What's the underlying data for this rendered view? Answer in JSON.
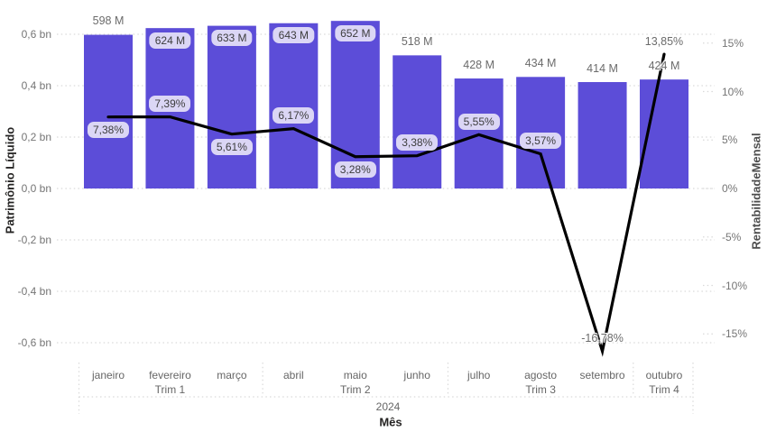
{
  "chart_data": {
    "type": "combo-bar-line",
    "x_axis_title": "Mês",
    "year_label": "2024",
    "categories": [
      "janeiro",
      "fevereiro",
      "março",
      "abril",
      "maio",
      "junho",
      "julho",
      "agosto",
      "setembro",
      "outubro"
    ],
    "quarters": [
      {
        "label": "Trim 1",
        "center_month_index": 1
      },
      {
        "label": "Trim 2",
        "center_month_index": 4
      },
      {
        "label": "Trim 3",
        "center_month_index": 7
      },
      {
        "label": "Trim 4",
        "center_month_index": 9
      }
    ],
    "separators_after_month_index": [
      2,
      5,
      8
    ],
    "bar_series": {
      "name": "Patrimônio Líquido",
      "unit": "M",
      "values_m": [
        598,
        624,
        633,
        643,
        652,
        518,
        428,
        434,
        414,
        424
      ],
      "labels": [
        "598 M",
        "624 M",
        "633 M",
        "643 M",
        "652 M",
        "518 M",
        "428 M",
        "434 M",
        "414 M",
        "424 M"
      ],
      "label_placement": [
        "outside",
        "inside",
        "inside",
        "inside",
        "inside",
        "outside",
        "outside",
        "outside",
        "outside",
        "outside"
      ]
    },
    "line_series": {
      "name": "RentabilidadeMensal",
      "unit": "%",
      "values_pct": [
        7.38,
        7.39,
        5.61,
        6.17,
        3.28,
        3.38,
        5.55,
        3.57,
        -16.78,
        13.85
      ],
      "labels": [
        "7,38%",
        "7,39%",
        "5,61%",
        "6,17%",
        "3,28%",
        "3,38%",
        "5,55%",
        "3,57%",
        "-16,78%",
        "13,85%"
      ],
      "label_side": [
        "below",
        "above",
        "below",
        "above",
        "below",
        "above",
        "above",
        "above",
        "above",
        "above"
      ],
      "label_boxed": [
        true,
        true,
        true,
        true,
        true,
        true,
        true,
        true,
        false,
        false
      ]
    },
    "left_axis": {
      "title": "Patrimônio Líquido",
      "tick_labels": [
        "0,6 bn",
        "0,4 bn",
        "0,2 bn",
        "0,0 bn",
        "-0,2 bn",
        "-0,4 bn",
        "-0,6 bn"
      ],
      "tick_values_bn": [
        0.6,
        0.4,
        0.2,
        0,
        -0.2,
        -0.4,
        -0.6
      ],
      "range_bn": [
        -0.6,
        0.6
      ]
    },
    "right_axis": {
      "title": "RentabilidadeMensal",
      "tick_labels": [
        "15%",
        "10%",
        "5%",
        "0%",
        "-5%",
        "-10%",
        "-15%"
      ],
      "tick_values_pct": [
        15,
        10,
        5,
        0,
        -5,
        -10,
        -15
      ],
      "range_pct": [
        -15,
        15
      ]
    },
    "grid": true,
    "legend": "none",
    "colors": {
      "bar": "#5C4DD8",
      "line": "#000000",
      "pill_bg": "#DBD6F5",
      "pill_text": "#3d3d3d",
      "value_label": "#6b6b6b",
      "tick_label": "#757575",
      "axis_title": "#252423",
      "grid": "#d9d9d9",
      "background": "#ffffff"
    }
  }
}
